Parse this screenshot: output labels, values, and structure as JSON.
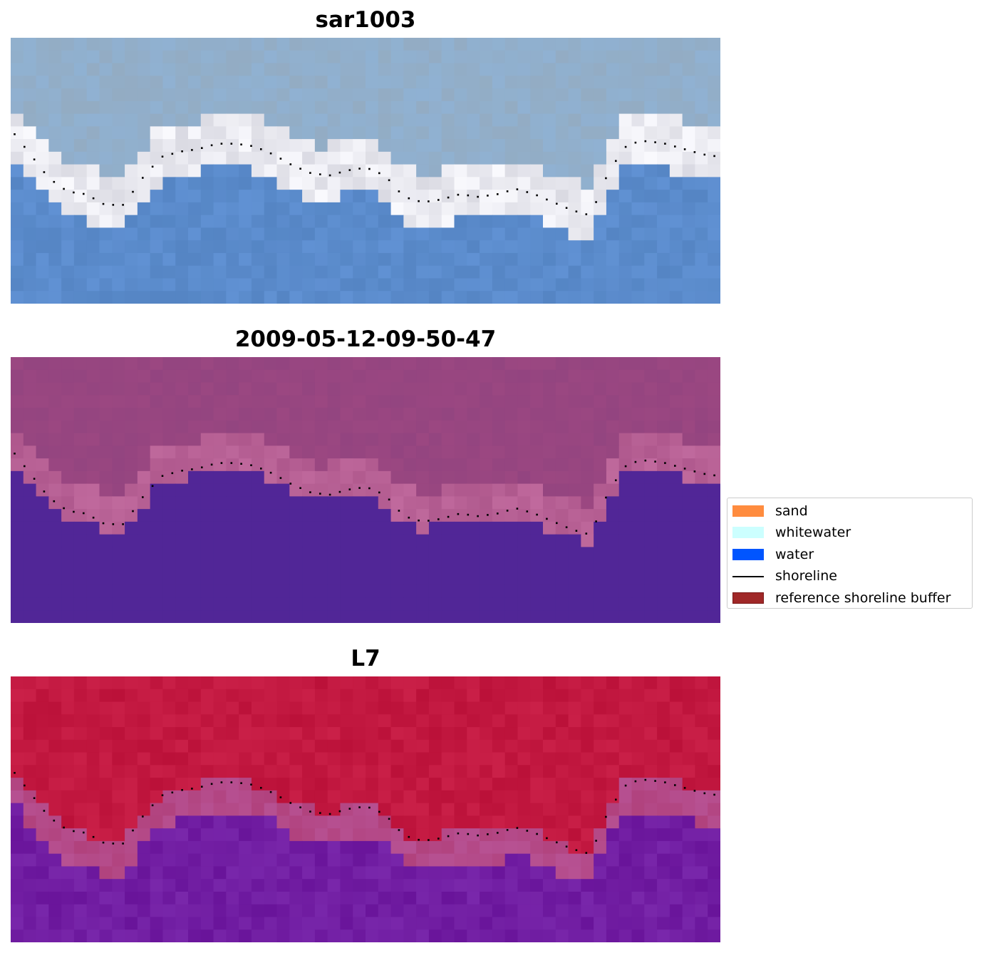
{
  "panels": [
    {
      "title": "sar1003"
    },
    {
      "title": "2009-05-12-09-50-47"
    },
    {
      "title": "L7"
    }
  ],
  "legend": {
    "items": [
      {
        "label": "sand",
        "color": "#ff8c3f",
        "kind": "patch"
      },
      {
        "label": "whitewater",
        "color": "#ccffff",
        "kind": "patch"
      },
      {
        "label": "water",
        "color": "#0055ff",
        "kind": "patch"
      },
      {
        "label": "shoreline",
        "color": "#000000",
        "kind": "line"
      },
      {
        "label": "reference shoreline buffer",
        "color": "#a02828",
        "kind": "patch",
        "edge": "#7a1818"
      }
    ]
  },
  "colors": {
    "rgb_water": "#5f8fcd",
    "rgb_surf": "#e4e4ec",
    "rgb_land": "#9cb5cc",
    "class_water": "#512697",
    "class_land": "#a04c86",
    "class_bright": "#b25b90",
    "index_land": "#c0163e",
    "index_transition": "#b7457e",
    "index_water": "#6e199f",
    "shoreline_dots": "#000000"
  },
  "shoreline_profile": [
    0.38,
    0.47,
    0.56,
    0.61,
    0.62,
    0.66,
    0.66,
    0.56,
    0.48,
    0.46,
    0.45,
    0.43,
    0.43,
    0.44,
    0.47,
    0.51,
    0.54,
    0.55,
    0.53,
    0.52,
    0.55,
    0.63,
    0.65,
    0.64,
    0.62,
    0.63,
    0.62,
    0.6,
    0.62,
    0.65,
    0.68,
    0.7,
    0.53,
    0.43,
    0.42,
    0.43,
    0.45,
    0.47,
    0.48
  ]
}
